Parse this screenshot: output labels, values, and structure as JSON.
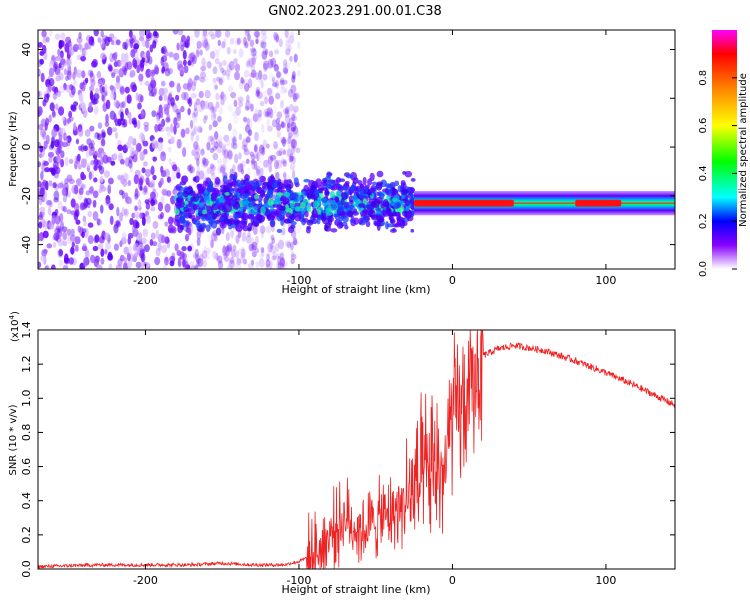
{
  "title": "GN02.2023.291.00.01.C38",
  "chart_data": [
    {
      "type": "heatmap",
      "xlabel": "Height of straight line (km)",
      "ylabel": "Frequency (Hz)",
      "xlim": [
        -270,
        145
      ],
      "ylim": [
        -50,
        48
      ],
      "xticks": [
        -200,
        -100,
        0,
        100
      ],
      "yticks": [
        -40,
        -20,
        0,
        20,
        40
      ],
      "colorbar": {
        "label": "Normalized spectral amplitude",
        "range": [
          0.0,
          1.0
        ],
        "ticks": [
          0.0,
          0.2,
          0.4,
          0.6,
          0.8
        ],
        "colormap": [
          "#ff00ff",
          "#ff0000",
          "#ff8800",
          "#ffff00",
          "#00ff00",
          "#00ffff",
          "#0000ff",
          "#8800ff",
          "#ffffff"
        ]
      },
      "features": {
        "scatter_region_x": [
          -270,
          -120
        ],
        "band_center_hz": -23,
        "band_onset_x": -180,
        "narrow_band_start_x": -25,
        "peak_amplitude_regions_x": [
          [
            -25,
            40
          ],
          [
            80,
            110
          ]
        ]
      }
    },
    {
      "type": "line",
      "xlabel": "Height of straight line (km)",
      "ylabel": "SNR (10 * v/v)",
      "ymultiplier": "(x10",
      "ymultiplier_exp": "4",
      "ymultiplier_close": ")",
      "xlim": [
        -270,
        145
      ],
      "ylim": [
        0.0,
        1.4
      ],
      "xticks": [
        -200,
        -100,
        0,
        100
      ],
      "yticks": [
        0.0,
        0.2,
        0.4,
        0.6,
        0.8,
        1.0,
        1.2,
        1.4
      ],
      "color": "#ee2222",
      "series": [
        {
          "x": [
            -270,
            -230,
            -200,
            -170,
            -150,
            -130,
            -110,
            -100,
            -90,
            -80,
            -70,
            -60,
            -50,
            -40,
            -30,
            -20,
            -15,
            -10,
            -5,
            0,
            5,
            10,
            15,
            20,
            30,
            40,
            60,
            80,
            100,
            120,
            145
          ],
          "y": [
            0.01,
            0.02,
            0.02,
            0.02,
            0.03,
            0.02,
            0.02,
            0.04,
            0.08,
            0.2,
            0.3,
            0.22,
            0.28,
            0.32,
            0.4,
            0.5,
            0.55,
            0.6,
            0.55,
            0.9,
            0.92,
            0.98,
            1.12,
            1.25,
            1.29,
            1.31,
            1.28,
            1.22,
            1.15,
            1.07,
            0.96
          ]
        }
      ]
    }
  ]
}
